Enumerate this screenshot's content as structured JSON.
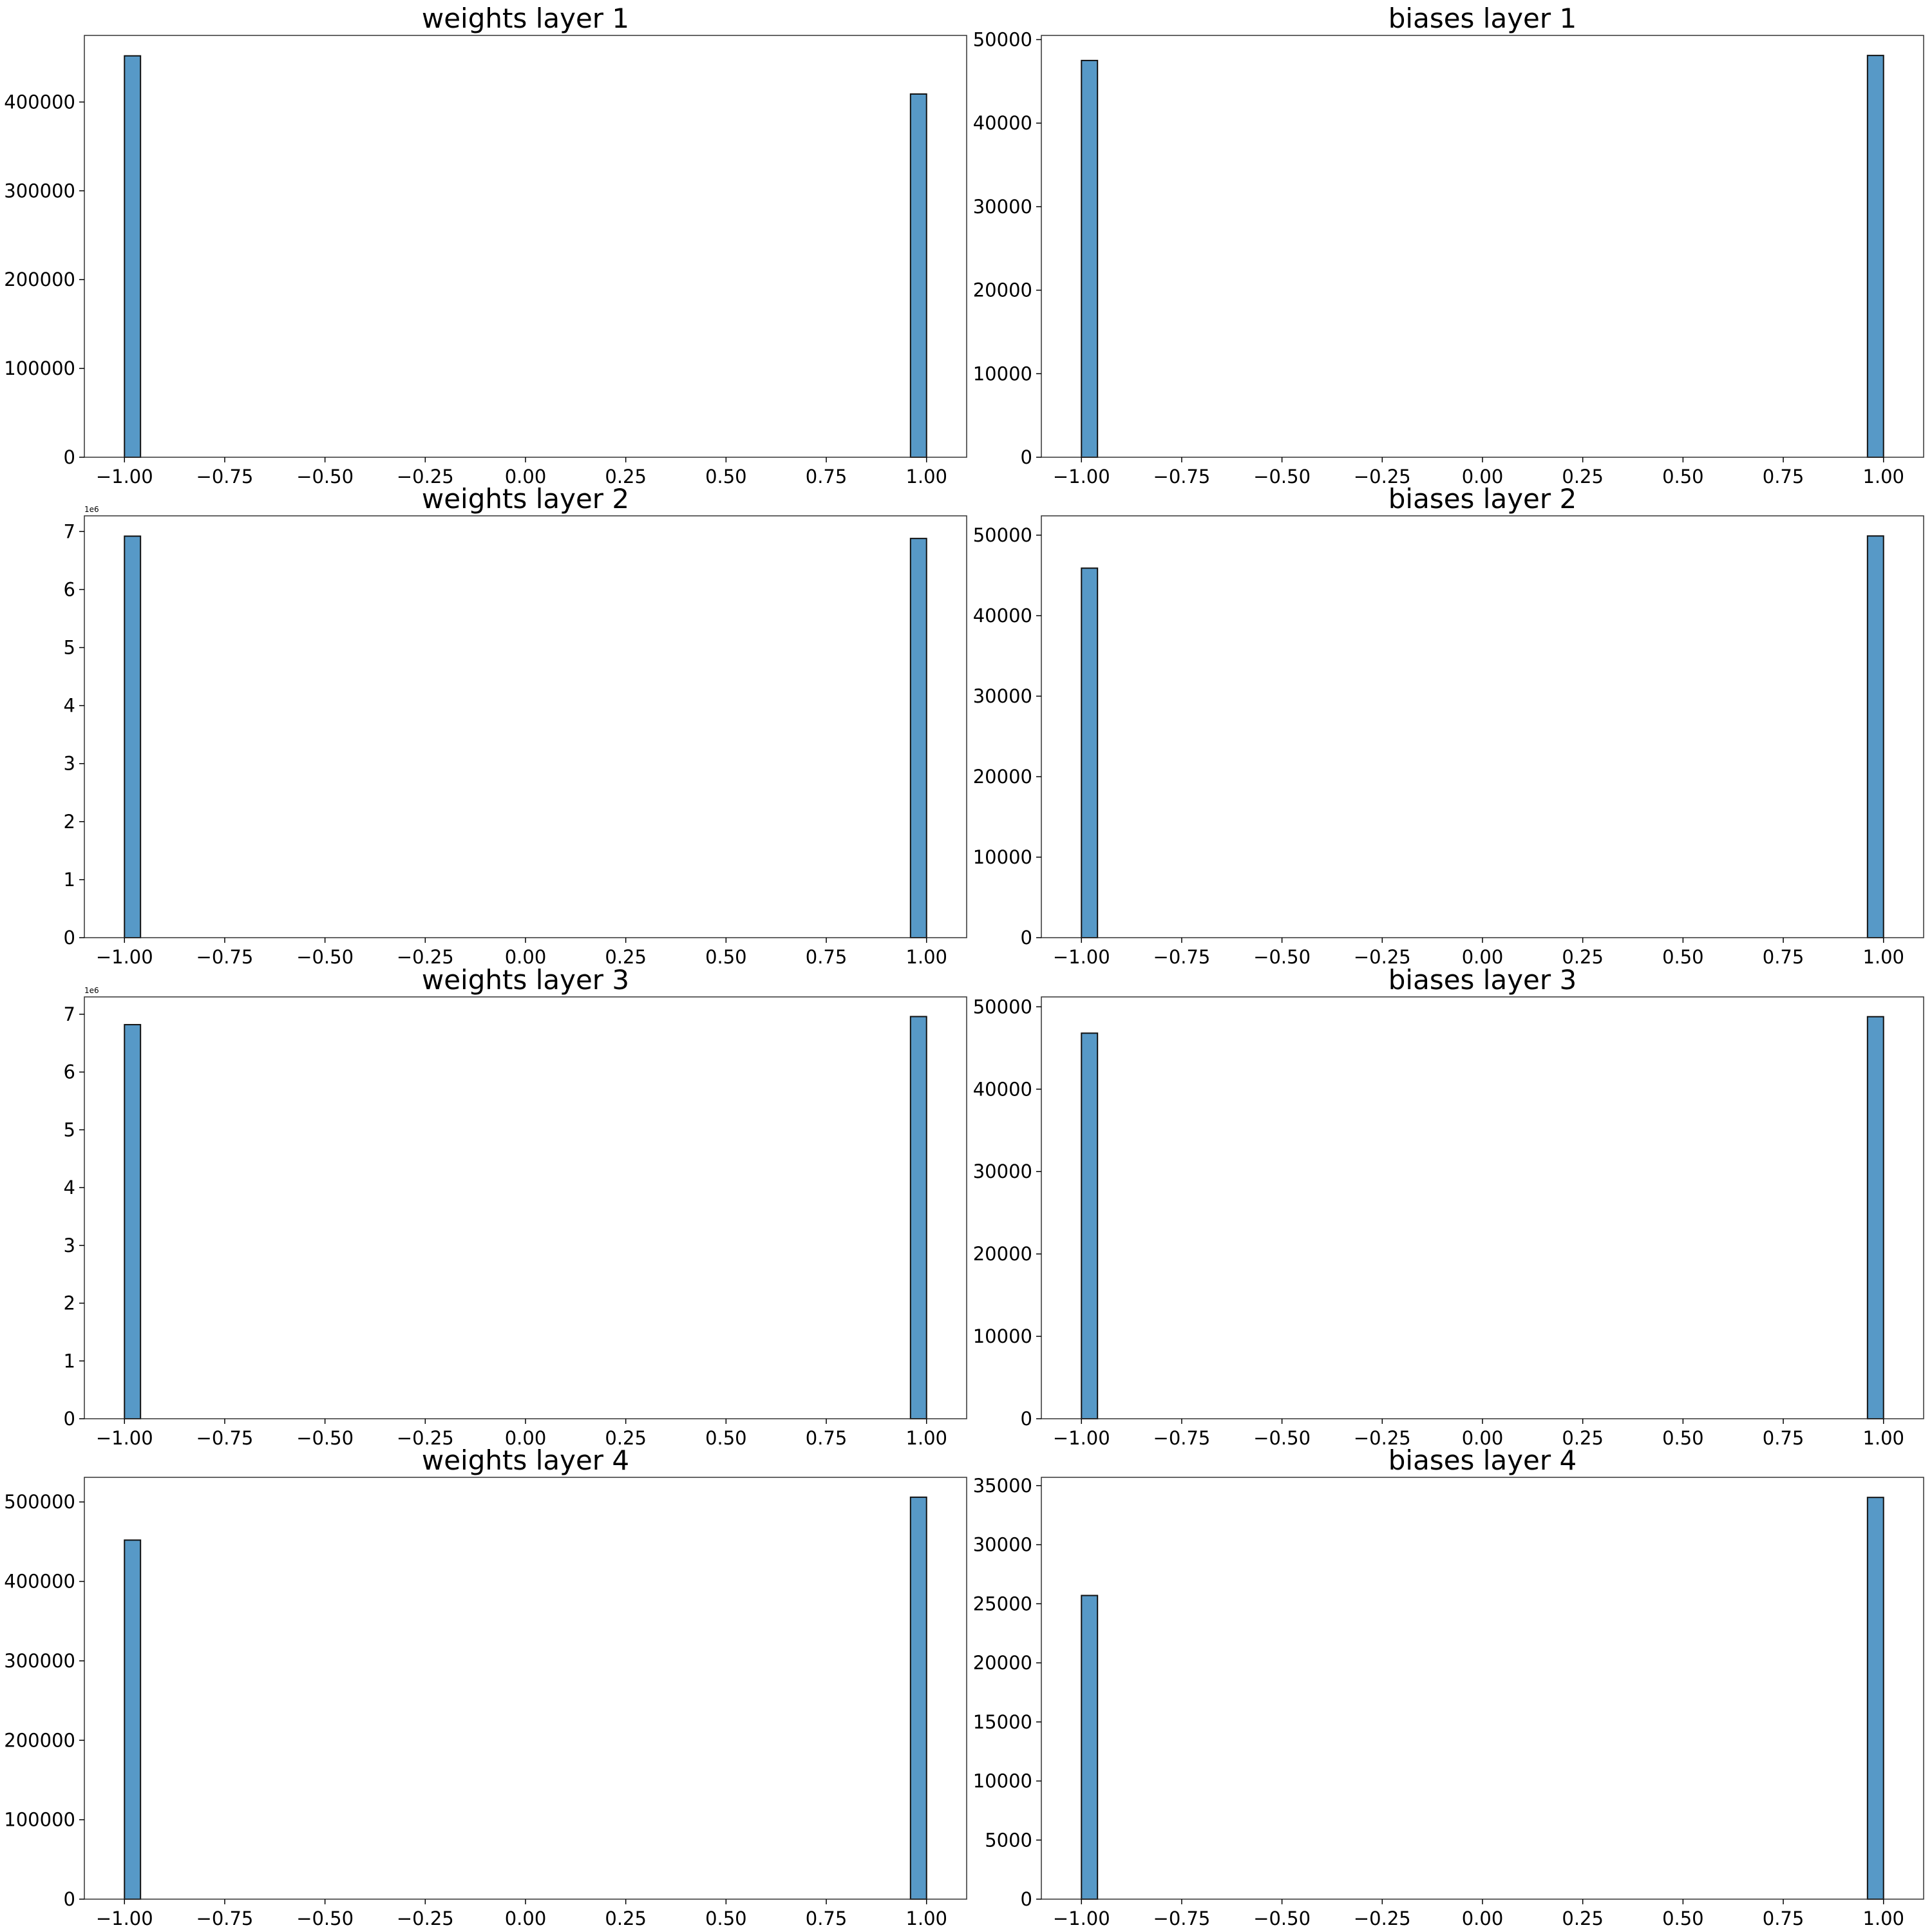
{
  "chart_data": [
    {
      "type": "bar",
      "title": "weights layer 1",
      "xlim": [
        -1.1,
        1.1
      ],
      "xticks": [
        -1.0,
        -0.75,
        -0.5,
        -0.25,
        0.0,
        0.25,
        0.5,
        0.75,
        1.0
      ],
      "xtick_labels": [
        "−1.00",
        "−0.75",
        "−0.50",
        "−0.25",
        "0.00",
        "0.25",
        "0.50",
        "0.75",
        "1.00"
      ],
      "ylim": [
        0,
        475000
      ],
      "yticks": [
        0,
        100000,
        200000,
        300000,
        400000
      ],
      "ytick_labels": [
        "0",
        "100000",
        "200000",
        "300000",
        "400000"
      ],
      "y_offset_label": "",
      "bars": [
        {
          "x0": -1.0,
          "x1": -0.96,
          "value": 452000
        },
        {
          "x0": 0.96,
          "x1": 1.0,
          "value": 409000
        }
      ]
    },
    {
      "type": "bar",
      "title": "biases layer 1",
      "xlim": [
        -1.1,
        1.1
      ],
      "xticks": [
        -1.0,
        -0.75,
        -0.5,
        -0.25,
        0.0,
        0.25,
        0.5,
        0.75,
        1.0
      ],
      "xtick_labels": [
        "−1.00",
        "−0.75",
        "−0.50",
        "−0.25",
        "0.00",
        "0.25",
        "0.50",
        "0.75",
        "1.00"
      ],
      "ylim": [
        0,
        50500
      ],
      "yticks": [
        0,
        10000,
        20000,
        30000,
        40000,
        50000
      ],
      "ytick_labels": [
        "0",
        "10000",
        "20000",
        "30000",
        "40000",
        "50000"
      ],
      "y_offset_label": "",
      "bars": [
        {
          "x0": -1.0,
          "x1": -0.96,
          "value": 47500
        },
        {
          "x0": 0.96,
          "x1": 1.0,
          "value": 48100
        }
      ]
    },
    {
      "type": "bar",
      "title": "weights layer 2",
      "xlim": [
        -1.1,
        1.1
      ],
      "xticks": [
        -1.0,
        -0.75,
        -0.5,
        -0.25,
        0.0,
        0.25,
        0.5,
        0.75,
        1.0
      ],
      "xtick_labels": [
        "−1.00",
        "−0.75",
        "−0.50",
        "−0.25",
        "0.00",
        "0.25",
        "0.50",
        "0.75",
        "1.00"
      ],
      "ylim": [
        0,
        7.27
      ],
      "yticks": [
        0,
        1,
        2,
        3,
        4,
        5,
        6,
        7
      ],
      "ytick_labels": [
        "0",
        "1",
        "2",
        "3",
        "4",
        "5",
        "6",
        "7"
      ],
      "y_offset_label": "1e6",
      "bars": [
        {
          "x0": -1.0,
          "x1": -0.96,
          "value": 6.92
        },
        {
          "x0": 0.96,
          "x1": 1.0,
          "value": 6.88
        }
      ]
    },
    {
      "type": "bar",
      "title": "biases layer 2",
      "xlim": [
        -1.1,
        1.1
      ],
      "xticks": [
        -1.0,
        -0.75,
        -0.5,
        -0.25,
        0.0,
        0.25,
        0.5,
        0.75,
        1.0
      ],
      "xtick_labels": [
        "−1.00",
        "−0.75",
        "−0.50",
        "−0.25",
        "0.00",
        "0.25",
        "0.50",
        "0.75",
        "1.00"
      ],
      "ylim": [
        0,
        52400
      ],
      "yticks": [
        0,
        10000,
        20000,
        30000,
        40000,
        50000
      ],
      "ytick_labels": [
        "0",
        "10000",
        "20000",
        "30000",
        "40000",
        "50000"
      ],
      "y_offset_label": "",
      "bars": [
        {
          "x0": -1.0,
          "x1": -0.96,
          "value": 45900
        },
        {
          "x0": 0.96,
          "x1": 1.0,
          "value": 49900
        }
      ]
    },
    {
      "type": "bar",
      "title": "weights layer 3",
      "xlim": [
        -1.1,
        1.1
      ],
      "xticks": [
        -1.0,
        -0.75,
        -0.5,
        -0.25,
        0.0,
        0.25,
        0.5,
        0.75,
        1.0
      ],
      "xtick_labels": [
        "−1.00",
        "−0.75",
        "−0.50",
        "−0.25",
        "0.00",
        "0.25",
        "0.50",
        "0.75",
        "1.00"
      ],
      "ylim": [
        0,
        7.3
      ],
      "yticks": [
        0,
        1,
        2,
        3,
        4,
        5,
        6,
        7
      ],
      "ytick_labels": [
        "0",
        "1",
        "2",
        "3",
        "4",
        "5",
        "6",
        "7"
      ],
      "y_offset_label": "1e6",
      "bars": [
        {
          "x0": -1.0,
          "x1": -0.96,
          "value": 6.82
        },
        {
          "x0": 0.96,
          "x1": 1.0,
          "value": 6.96
        }
      ]
    },
    {
      "type": "bar",
      "title": "biases layer 3",
      "xlim": [
        -1.1,
        1.1
      ],
      "xticks": [
        -1.0,
        -0.75,
        -0.5,
        -0.25,
        0.0,
        0.25,
        0.5,
        0.75,
        1.0
      ],
      "xtick_labels": [
        "−1.00",
        "−0.75",
        "−0.50",
        "−0.25",
        "0.00",
        "0.25",
        "0.50",
        "0.75",
        "1.00"
      ],
      "ylim": [
        0,
        51200
      ],
      "yticks": [
        0,
        10000,
        20000,
        30000,
        40000,
        50000
      ],
      "ytick_labels": [
        "0",
        "10000",
        "20000",
        "30000",
        "40000",
        "50000"
      ],
      "y_offset_label": "",
      "bars": [
        {
          "x0": -1.0,
          "x1": -0.96,
          "value": 46800
        },
        {
          "x0": 0.96,
          "x1": 1.0,
          "value": 48800
        }
      ]
    },
    {
      "type": "bar",
      "title": "weights layer 4",
      "xlim": [
        -1.1,
        1.1
      ],
      "xticks": [
        -1.0,
        -0.75,
        -0.5,
        -0.25,
        0.0,
        0.25,
        0.5,
        0.75,
        1.0
      ],
      "xtick_labels": [
        "−1.00",
        "−0.75",
        "−0.50",
        "−0.25",
        "0.00",
        "0.25",
        "0.50",
        "0.75",
        "1.00"
      ],
      "ylim": [
        0,
        531000
      ],
      "yticks": [
        0,
        100000,
        200000,
        300000,
        400000,
        500000
      ],
      "ytick_labels": [
        "0",
        "100000",
        "200000",
        "300000",
        "400000",
        "500000"
      ],
      "y_offset_label": "",
      "bars": [
        {
          "x0": -1.0,
          "x1": -0.96,
          "value": 452000
        },
        {
          "x0": 0.96,
          "x1": 1.0,
          "value": 506000
        }
      ]
    },
    {
      "type": "bar",
      "title": "biases layer 4",
      "xlim": [
        -1.1,
        1.1
      ],
      "xticks": [
        -1.0,
        -0.75,
        -0.5,
        -0.25,
        0.0,
        0.25,
        0.5,
        0.75,
        1.0
      ],
      "xtick_labels": [
        "−1.00",
        "−0.75",
        "−0.50",
        "−0.25",
        "0.00",
        "0.25",
        "0.50",
        "0.75",
        "1.00"
      ],
      "ylim": [
        0,
        35700
      ],
      "yticks": [
        0,
        5000,
        10000,
        15000,
        20000,
        25000,
        30000,
        35000
      ],
      "ytick_labels": [
        "0",
        "5000",
        "10000",
        "15000",
        "20000",
        "25000",
        "30000",
        "35000"
      ],
      "y_offset_label": "",
      "bars": [
        {
          "x0": -1.0,
          "x1": -0.96,
          "value": 25700
        },
        {
          "x0": 0.96,
          "x1": 1.0,
          "value": 34000
        }
      ]
    }
  ]
}
